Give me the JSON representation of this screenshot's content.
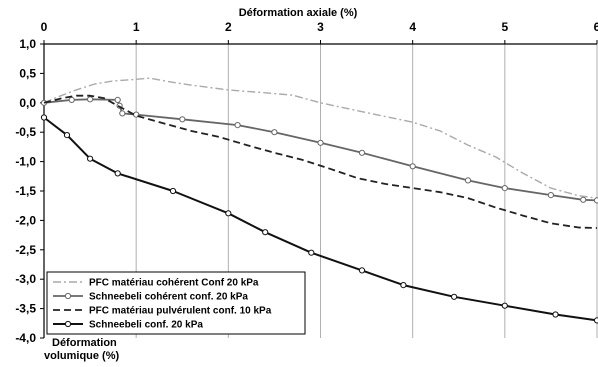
{
  "chart_data": {
    "type": "line",
    "title": "",
    "x_axis": {
      "label": "Déformation axiale (%)",
      "position": "top",
      "range": [
        0,
        6
      ],
      "ticks": [
        "0",
        "1",
        "2",
        "3",
        "4",
        "5",
        "6"
      ]
    },
    "y_axis": {
      "label_line1": "Déformation",
      "label_line2": "volumique (%)",
      "range": [
        -4,
        1
      ],
      "ticks": [
        "1,0",
        "0,5",
        "0,0",
        "-0,5",
        "-1,0",
        "-1,5",
        "-2,0",
        "-2,5",
        "-3,0",
        "-3,5",
        "-4,0"
      ]
    },
    "grid": "vertical",
    "legend_position": "bottom-left",
    "series": [
      {
        "name": "PFC matériau cohérent Conf 20 kPa",
        "color": "#aaaaaa",
        "style": "dashdot",
        "markers": false,
        "points": [
          [
            0,
            0.0
          ],
          [
            0.15,
            0.1
          ],
          [
            0.35,
            0.22
          ],
          [
            0.55,
            0.32
          ],
          [
            0.75,
            0.37
          ],
          [
            1.0,
            0.4
          ],
          [
            1.15,
            0.42
          ],
          [
            1.35,
            0.36
          ],
          [
            1.6,
            0.3
          ],
          [
            2.0,
            0.22
          ],
          [
            2.4,
            0.17
          ],
          [
            2.7,
            0.13
          ],
          [
            3.0,
            0.0
          ],
          [
            3.3,
            -0.1
          ],
          [
            3.6,
            -0.2
          ],
          [
            4.0,
            -0.33
          ],
          [
            4.3,
            -0.48
          ],
          [
            4.6,
            -0.72
          ],
          [
            4.9,
            -0.92
          ],
          [
            5.2,
            -1.2
          ],
          [
            5.5,
            -1.45
          ],
          [
            5.8,
            -1.58
          ],
          [
            6.0,
            -1.62
          ]
        ]
      },
      {
        "name": "Schneebeli cohérent conf. 20 kPa",
        "color": "#666666",
        "style": "solid",
        "markers": true,
        "points": [
          [
            0,
            0.0
          ],
          [
            0.3,
            0.05
          ],
          [
            0.5,
            0.06
          ],
          [
            0.8,
            0.05
          ],
          [
            0.82,
            -0.05
          ],
          [
            0.85,
            -0.18
          ],
          [
            1.0,
            -0.2
          ],
          [
            1.5,
            -0.28
          ],
          [
            2.1,
            -0.38
          ],
          [
            2.5,
            -0.5
          ],
          [
            3.0,
            -0.68
          ],
          [
            3.45,
            -0.85
          ],
          [
            4.0,
            -1.08
          ],
          [
            4.6,
            -1.32
          ],
          [
            5.0,
            -1.45
          ],
          [
            5.5,
            -1.57
          ],
          [
            5.85,
            -1.65
          ],
          [
            6.0,
            -1.66
          ]
        ]
      },
      {
        "name": "PFC matériau pulvérulent conf. 10 kPa",
        "color": "#222222",
        "style": "dashed",
        "markers": false,
        "points": [
          [
            0,
            0.0
          ],
          [
            0.2,
            0.08
          ],
          [
            0.35,
            0.12
          ],
          [
            0.5,
            0.12
          ],
          [
            0.65,
            0.08
          ],
          [
            0.8,
            -0.05
          ],
          [
            1.0,
            -0.22
          ],
          [
            1.3,
            -0.35
          ],
          [
            1.6,
            -0.48
          ],
          [
            1.9,
            -0.58
          ],
          [
            2.2,
            -0.72
          ],
          [
            2.5,
            -0.85
          ],
          [
            2.8,
            -0.97
          ],
          [
            3.1,
            -1.12
          ],
          [
            3.4,
            -1.28
          ],
          [
            3.7,
            -1.38
          ],
          [
            4.0,
            -1.45
          ],
          [
            4.3,
            -1.52
          ],
          [
            4.6,
            -1.62
          ],
          [
            4.9,
            -1.78
          ],
          [
            5.2,
            -1.92
          ],
          [
            5.5,
            -2.05
          ],
          [
            5.8,
            -2.12
          ],
          [
            6.0,
            -2.13
          ]
        ]
      },
      {
        "name": "Schneebeli conf. 20 kPa",
        "color": "#111111",
        "style": "solid",
        "markers": true,
        "points": [
          [
            0,
            -0.25
          ],
          [
            0.25,
            -0.55
          ],
          [
            0.5,
            -0.95
          ],
          [
            0.8,
            -1.2
          ],
          [
            1.4,
            -1.5
          ],
          [
            2.0,
            -1.88
          ],
          [
            2.4,
            -2.2
          ],
          [
            2.9,
            -2.55
          ],
          [
            3.45,
            -2.85
          ],
          [
            3.9,
            -3.1
          ],
          [
            4.45,
            -3.3
          ],
          [
            5.0,
            -3.45
          ],
          [
            5.55,
            -3.6
          ],
          [
            6.0,
            -3.7
          ]
        ]
      }
    ]
  }
}
